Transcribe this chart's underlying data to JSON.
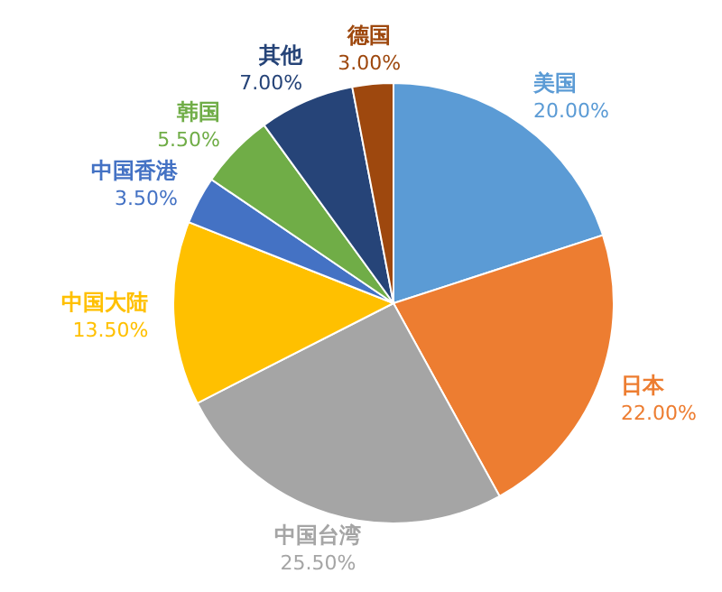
{
  "chart_data": {
    "type": "pie",
    "categories": [
      "美国",
      "日本",
      "中国台湾",
      "中国大陆",
      "中国香港",
      "韩国",
      "其他",
      "德国"
    ],
    "values": [
      20,
      22,
      25.5,
      13.5,
      3.5,
      5.5,
      7,
      3
    ],
    "colors": [
      "#5b9bd5",
      "#ed7d31",
      "#a5a5a5",
      "#ffc000",
      "#4472c4",
      "#70ad47",
      "#264478",
      "#9e480e"
    ],
    "value_labels": [
      "20.00%",
      "22.00%",
      "25.50%",
      "13.50%",
      "3.50%",
      "5.50%",
      "7.00%",
      "3.00%"
    ]
  }
}
